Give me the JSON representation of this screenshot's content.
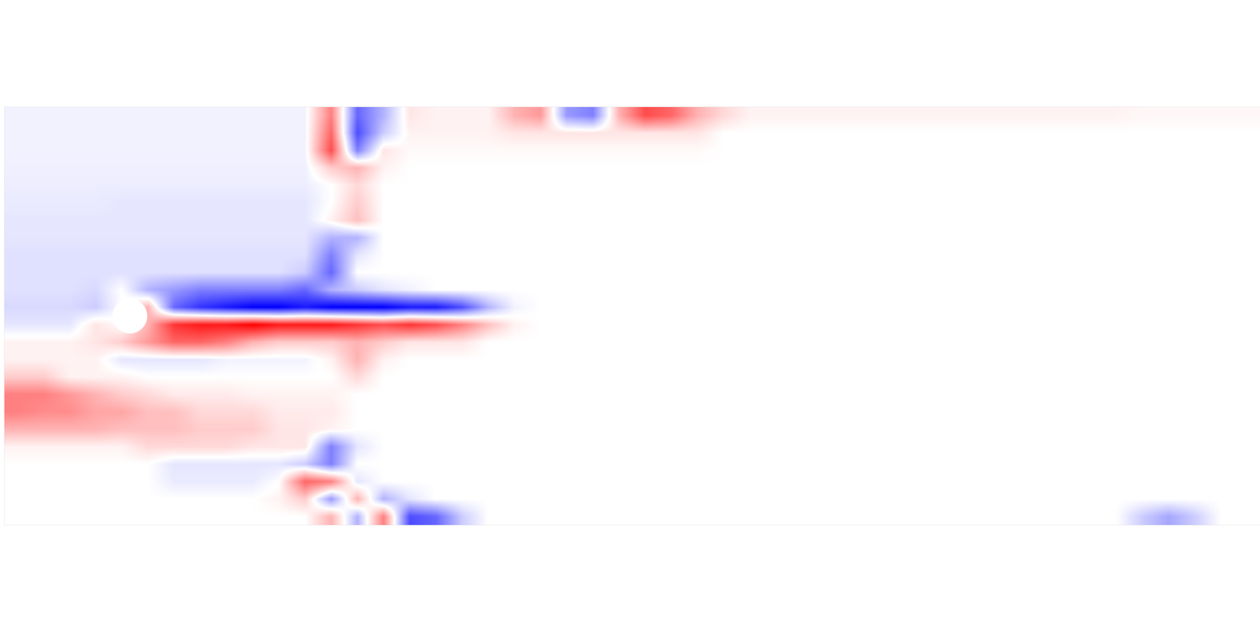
{
  "chart_data": {
    "type": "heatmap",
    "tick_labels": false,
    "xlim": [
      0,
      36
    ],
    "ylim": [
      -6,
      6
    ],
    "colors": [
      "#0000ff",
      "#ffffff",
      "#ff0000"
    ],
    "clim": [
      -1,
      1
    ],
    "cylinder": {
      "x": 3.6,
      "y": 0,
      "r": 0.5
    },
    "cells": [
      [
        -0.05,
        -0.05,
        -0.05,
        -0.05,
        -0.05,
        -0.05,
        -0.05,
        -0.05,
        -0.05,
        -0.05,
        -0.05,
        -0.05,
        0.5,
        -0.6,
        -0.3,
        0.1,
        0.05,
        0.05,
        0.05,
        0.3,
        0.4,
        -0.4,
        -0.5,
        0.3,
        0.7,
        0.6,
        0.3,
        0.15,
        0.05,
        0.05,
        0.05,
        0.05,
        0.05,
        0.05,
        0.05,
        0.05,
        0.05,
        0.05,
        0.05,
        0.05,
        0.05,
        0.05,
        0.05,
        0.03,
        0.03,
        0.03,
        0.03,
        0.03
      ],
      [
        -0.05,
        -0.05,
        -0.05,
        -0.05,
        -0.05,
        -0.05,
        -0.05,
        -0.05,
        -0.05,
        -0.05,
        -0.05,
        -0.05,
        0.6,
        -0.7,
        -0.2,
        0.05,
        0.05,
        0.05,
        0.05,
        0.1,
        0.1,
        0.1,
        0.1,
        0.1,
        0.1,
        0.1,
        0.1,
        0,
        0,
        0,
        0,
        0,
        0,
        0,
        0,
        0,
        0,
        0,
        0,
        0,
        0,
        0,
        0,
        0,
        0,
        0,
        0,
        0
      ],
      [
        -0.05,
        -0.05,
        -0.05,
        -0.05,
        -0.05,
        -0.05,
        -0.05,
        -0.05,
        -0.05,
        -0.05,
        -0.05,
        -0.05,
        0.7,
        -0.5,
        0.1,
        0.02,
        0.02,
        0.02,
        0.02,
        0.02,
        0.02,
        0.02,
        0.02,
        0.02,
        0.02,
        0.02,
        0.02,
        0,
        0,
        0,
        0,
        0,
        0,
        0,
        0,
        0,
        0,
        0,
        0,
        0,
        0,
        0,
        0,
        0,
        0,
        0,
        0,
        0
      ],
      [
        -0.06,
        -0.06,
        -0.06,
        -0.06,
        -0.06,
        -0.06,
        -0.06,
        -0.06,
        -0.06,
        -0.06,
        -0.06,
        -0.06,
        0.2,
        0.3,
        0.05,
        0,
        0,
        0,
        0,
        0,
        0,
        0,
        0,
        0,
        0,
        0,
        0,
        0,
        0,
        0,
        0,
        0,
        0,
        0,
        0,
        0,
        0,
        0,
        0,
        0,
        0,
        0,
        0,
        0,
        0,
        0,
        0,
        0
      ],
      [
        -0.07,
        -0.07,
        -0.07,
        -0.07,
        -0.07,
        -0.07,
        -0.07,
        -0.07,
        -0.07,
        -0.07,
        -0.07,
        -0.07,
        0,
        0.15,
        0,
        0,
        0,
        0,
        0,
        0,
        0,
        0,
        0,
        0,
        0,
        0,
        0,
        0,
        0,
        0,
        0,
        0,
        0,
        0,
        0,
        0,
        0,
        0,
        0,
        0,
        0,
        0,
        0,
        0,
        0,
        0,
        0,
        0
      ],
      [
        -0.08,
        -0.08,
        -0.08,
        -0.08,
        -0.1,
        -0.1,
        -0.1,
        -0.1,
        -0.1,
        -0.1,
        -0.1,
        -0.1,
        0,
        0.2,
        0,
        0,
        0,
        0,
        0,
        0,
        0,
        0,
        0,
        0,
        0,
        0,
        0,
        0,
        0,
        0,
        0,
        0,
        0,
        0,
        0,
        0,
        0,
        0,
        0,
        0,
        0,
        0,
        0,
        0,
        0,
        0,
        0,
        0
      ],
      [
        -0.1,
        -0.1,
        -0.1,
        -0.1,
        -0.1,
        -0.1,
        -0.1,
        -0.1,
        -0.1,
        -0.1,
        -0.1,
        -0.1,
        0.05,
        0.25,
        0,
        0,
        0,
        0,
        0,
        0,
        0,
        0,
        0,
        0,
        0,
        0,
        0,
        0,
        0,
        0,
        0,
        0,
        0,
        0,
        0,
        0,
        0,
        0,
        0,
        0,
        0,
        0,
        0,
        0,
        0,
        0,
        0,
        0
      ],
      [
        -0.1,
        -0.1,
        -0.1,
        -0.1,
        -0.1,
        -0.1,
        -0.1,
        -0.1,
        -0.1,
        -0.1,
        -0.1,
        -0.1,
        -0.3,
        -0.3,
        0,
        0,
        0,
        0,
        0,
        0,
        0,
        0,
        0,
        0,
        0,
        0,
        0,
        0,
        0,
        0,
        0,
        0,
        0,
        0,
        0,
        0,
        0,
        0,
        0,
        0,
        0,
        0,
        0,
        0,
        0,
        0,
        0,
        0
      ],
      [
        -0.12,
        -0.12,
        -0.12,
        -0.12,
        -0.12,
        -0.12,
        -0.12,
        -0.12,
        -0.12,
        -0.12,
        -0.12,
        -0.12,
        -0.5,
        -0.1,
        0,
        0,
        0,
        0,
        0,
        0,
        0,
        0,
        0,
        0,
        0,
        0,
        0,
        0,
        0,
        0,
        0,
        0,
        0,
        0,
        0,
        0,
        0,
        0,
        0,
        0,
        0,
        0,
        0,
        0,
        0,
        0,
        0,
        0
      ],
      [
        -0.12,
        -0.12,
        -0.12,
        -0.12,
        -0.12,
        -0.12,
        -0.12,
        -0.12,
        -0.12,
        -0.12,
        -0.12,
        -0.2,
        -0.6,
        0,
        0,
        0,
        0,
        0,
        0,
        0,
        0,
        0,
        0,
        0,
        0,
        0,
        0,
        0,
        0,
        0,
        0,
        0,
        0,
        0,
        0,
        0,
        0,
        0,
        0,
        0,
        0,
        0,
        0,
        0,
        0,
        0,
        0,
        0
      ],
      [
        -0.12,
        -0.12,
        -0.12,
        -0.15,
        0,
        -0.3,
        -0.4,
        -0.5,
        -0.5,
        -0.5,
        -0.5,
        -0.6,
        -0.3,
        -0.2,
        -0.1,
        -0.05,
        0,
        0,
        0,
        0,
        0,
        0,
        0,
        0,
        0,
        0,
        0,
        0,
        0,
        0,
        0,
        0,
        0,
        0,
        0,
        0,
        0,
        0,
        0,
        0,
        0,
        0,
        0,
        0,
        0,
        0,
        0,
        0
      ],
      [
        -0.15,
        -0.15,
        -0.15,
        -0.2,
        0,
        0.3,
        -0.6,
        -0.8,
        -0.9,
        -1,
        -1,
        -0.9,
        -1,
        -1,
        -1,
        -0.9,
        -0.9,
        -0.7,
        -0.3,
        -0.05,
        0,
        0,
        0,
        0,
        0,
        0,
        0,
        0,
        0,
        0,
        0,
        0,
        0,
        0,
        0,
        0,
        0,
        0,
        0,
        0,
        0,
        0,
        0,
        0,
        0,
        0,
        0,
        0
      ],
      [
        -0.1,
        -0.1,
        -0.1,
        0.1,
        0,
        0.3,
        0.8,
        0.9,
        0.9,
        1,
        0.9,
        0.9,
        0.9,
        0.8,
        0.7,
        0.8,
        0.7,
        0.5,
        0.25,
        0.05,
        0,
        0,
        0,
        0,
        0,
        0,
        0,
        0,
        0,
        0,
        0,
        0,
        0,
        0,
        0,
        0,
        0,
        0,
        0,
        0,
        0,
        0,
        0,
        0,
        0,
        0,
        0,
        0
      ],
      [
        0.05,
        0.05,
        0.05,
        0.1,
        0.2,
        0.4,
        0.6,
        0.6,
        0.5,
        0.3,
        0.2,
        0.2,
        0.2,
        0.3,
        0.2,
        0.1,
        0.1,
        0.1,
        0,
        0,
        0,
        0,
        0,
        0,
        0,
        0,
        0,
        0,
        0,
        0,
        0,
        0,
        0,
        0,
        0,
        0,
        0,
        0,
        0,
        0,
        0,
        0,
        0,
        0,
        0,
        0,
        0,
        0
      ],
      [
        0.05,
        0.05,
        0.05,
        0.05,
        -0.1,
        -0.1,
        -0.1,
        -0.1,
        -0.05,
        -0.05,
        -0.05,
        -0.05,
        0.05,
        0.3,
        0.05,
        0,
        0,
        0,
        0,
        0,
        0,
        0,
        0,
        0,
        0,
        0,
        0,
        0,
        0,
        0,
        0,
        0,
        0,
        0,
        0,
        0,
        0,
        0,
        0,
        0,
        0,
        0,
        0,
        0,
        0,
        0,
        0,
        0
      ],
      [
        0.2,
        0.2,
        0.05,
        0.05,
        0.05,
        0,
        0,
        0,
        0,
        0,
        0,
        0,
        0,
        0.15,
        0,
        0,
        0,
        0,
        0,
        0,
        0,
        0,
        0,
        0,
        0,
        0,
        0,
        0,
        0,
        0,
        0,
        0,
        0,
        0,
        0,
        0,
        0,
        0,
        0,
        0,
        0,
        0,
        0,
        0,
        0,
        0,
        0,
        0
      ],
      [
        0.5,
        0.5,
        0.4,
        0.3,
        0.2,
        0.15,
        0.08,
        0.08,
        0.08,
        0.05,
        0.05,
        0.05,
        0.05,
        0,
        0,
        0,
        0,
        0,
        0,
        0,
        0,
        0,
        0,
        0,
        0,
        0,
        0,
        0,
        0,
        0,
        0,
        0,
        0,
        0,
        0,
        0,
        0,
        0,
        0,
        0,
        0,
        0,
        0,
        0,
        0,
        0,
        0,
        0
      ],
      [
        0.5,
        0.45,
        0.45,
        0.35,
        0.35,
        0.25,
        0.25,
        0.15,
        0.15,
        0.15,
        0.08,
        0.08,
        0.08,
        0,
        0,
        0,
        0,
        0,
        0,
        0,
        0,
        0,
        0,
        0,
        0,
        0,
        0,
        0,
        0,
        0,
        0,
        0,
        0,
        0,
        0,
        0,
        0,
        0,
        0,
        0,
        0,
        0,
        0,
        0,
        0,
        0,
        0,
        0
      ],
      [
        0.3,
        0.3,
        0.3,
        0.3,
        0.25,
        0.25,
        0.25,
        0.2,
        0.2,
        0.2,
        0.1,
        0.1,
        0.05,
        0,
        0,
        0,
        0,
        0,
        0,
        0,
        0,
        0,
        0,
        0,
        0,
        0,
        0,
        0,
        0,
        0,
        0,
        0,
        0,
        0,
        0,
        0,
        0,
        0,
        0,
        0,
        0,
        0,
        0,
        0,
        0,
        0,
        0,
        0
      ],
      [
        0.05,
        0.05,
        0.05,
        0.05,
        0.05,
        0.15,
        0.15,
        0.15,
        0.15,
        0.1,
        0.1,
        0.1,
        -0.5,
        -0.1,
        0,
        0,
        0,
        0,
        0,
        0,
        0,
        0,
        0,
        0,
        0,
        0,
        0,
        0,
        0,
        0,
        0,
        0,
        0,
        0,
        0,
        0,
        0,
        0,
        0,
        0,
        0,
        0,
        0,
        0,
        0,
        0,
        0,
        0
      ],
      [
        0,
        0,
        0,
        0,
        0,
        0,
        -0.1,
        -0.1,
        -0.1,
        -0.1,
        -0.1,
        -0.2,
        -0.5,
        0,
        0,
        0,
        0,
        0,
        0,
        0,
        0,
        0,
        0,
        0,
        0,
        0,
        0,
        0,
        0,
        0,
        0,
        0,
        0,
        0,
        0,
        0,
        0,
        0,
        0,
        0,
        0,
        0,
        0,
        0,
        0,
        0,
        0,
        0
      ],
      [
        0,
        0,
        0,
        0,
        0,
        0,
        -0.08,
        -0.08,
        -0.08,
        -0.08,
        0,
        0.6,
        0.5,
        -0.1,
        0,
        0,
        0,
        0,
        0,
        0,
        0,
        0,
        0,
        0,
        0,
        0,
        0,
        0,
        0,
        0,
        0,
        0,
        0,
        0,
        0,
        0,
        0,
        0,
        0,
        0,
        0,
        0,
        0,
        0,
        0,
        0,
        0,
        0
      ],
      [
        0,
        0,
        0,
        0,
        0,
        0,
        0,
        0,
        0,
        0,
        0.05,
        0.2,
        -0.4,
        0.3,
        -0.3,
        -0.1,
        0,
        0,
        0,
        0,
        0,
        0,
        0,
        0,
        0,
        0,
        0,
        0,
        0,
        0,
        0,
        0,
        0,
        0,
        0,
        0,
        0,
        0,
        0,
        0,
        0,
        0,
        0,
        0,
        0,
        0,
        0,
        0
      ],
      [
        0,
        0,
        0,
        0,
        0,
        0,
        0,
        0,
        0,
        0,
        0,
        0,
        0.3,
        -0.3,
        0.5,
        -0.7,
        -0.6,
        -0.2,
        0,
        0,
        0,
        0,
        0,
        0,
        0,
        0,
        0,
        0,
        0,
        0,
        0,
        0,
        0,
        0,
        0,
        0,
        0,
        0,
        0,
        0,
        0,
        0,
        0,
        -0.2,
        -0.35,
        -0.2,
        0,
        0
      ]
    ]
  }
}
